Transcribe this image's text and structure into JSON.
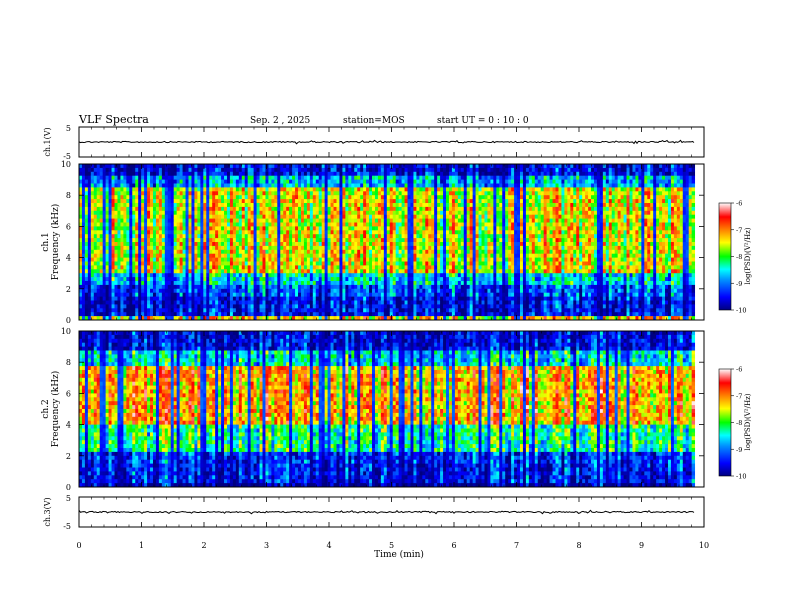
{
  "header": {
    "title": "VLF Spectra",
    "date": "Sep. 2 , 2025",
    "station": "station=MOS",
    "start_ut": "start UT =  0 : 10 : 0"
  },
  "colorbar": {
    "label": "log(PSD)(V²/Hz)",
    "ticks": [
      "-6",
      "-7",
      "-8",
      "-9",
      "-10"
    ],
    "stops": [
      "#000080",
      "#0000ff",
      "#0090ff",
      "#00ffff",
      "#00ff00",
      "#ffff00",
      "#ff8000",
      "#ff0000",
      "#ffffff"
    ]
  },
  "chart_data": [
    {
      "type": "line",
      "name": "ch1-waveform",
      "ylabel": "ch.1(V)",
      "ylim": [
        -5,
        5
      ],
      "yticks": [
        "5",
        "-5"
      ],
      "baseline": 0,
      "xlim": [
        0,
        10
      ]
    },
    {
      "type": "heatmap",
      "name": "ch1-spectrogram",
      "ylabel_channel": "ch.1",
      "ylabel": "Frequency (kHz)",
      "ylim": [
        0,
        10
      ],
      "yticks": [
        "0",
        "2",
        "4",
        "6",
        "8",
        "10"
      ],
      "xlim": [
        0,
        10
      ],
      "zlim": [
        -10,
        -6
      ],
      "data_end_min": 9.85,
      "bands_khz": [
        {
          "f0": 0.0,
          "f1": 0.3,
          "level": 0.65
        },
        {
          "f0": 0.3,
          "f1": 1.5,
          "level": 0.12
        },
        {
          "f0": 1.5,
          "f1": 2.2,
          "level": 0.2
        },
        {
          "f0": 2.2,
          "f1": 3.0,
          "level": 0.35
        },
        {
          "f0": 3.0,
          "f1": 8.5,
          "level": 0.62
        },
        {
          "f0": 8.5,
          "f1": 9.3,
          "level": 0.3
        },
        {
          "f0": 9.3,
          "f1": 10.0,
          "level": 0.1
        }
      ]
    },
    {
      "type": "heatmap",
      "name": "ch2-spectrogram",
      "ylabel_channel": "ch.2",
      "ylabel": "Frequency (kHz)",
      "ylim": [
        0,
        10
      ],
      "yticks": [
        "0",
        "2",
        "4",
        "6",
        "8",
        "10"
      ],
      "xlim": [
        0,
        10
      ],
      "zlim": [
        -10,
        -6
      ],
      "data_end_min": 9.85,
      "bands_khz": [
        {
          "f0": 0.0,
          "f1": 0.3,
          "level": 0.05
        },
        {
          "f0": 0.3,
          "f1": 1.5,
          "level": 0.15
        },
        {
          "f0": 1.5,
          "f1": 2.3,
          "level": 0.18
        },
        {
          "f0": 2.3,
          "f1": 4.0,
          "level": 0.45
        },
        {
          "f0": 4.0,
          "f1": 7.8,
          "level": 0.72
        },
        {
          "f0": 7.8,
          "f1": 8.8,
          "level": 0.38
        },
        {
          "f0": 8.8,
          "f1": 10.0,
          "level": 0.12
        }
      ]
    },
    {
      "type": "line",
      "name": "ch3-waveform",
      "ylabel": "ch.3(V)",
      "ylim": [
        -5,
        5
      ],
      "yticks": [
        "5",
        "-5"
      ],
      "baseline": 0,
      "xlim": [
        0,
        10
      ],
      "xlabel": "Time (min)",
      "xticks": [
        "0",
        "1",
        "2",
        "3",
        "4",
        "5",
        "6",
        "7",
        "8",
        "9",
        "10"
      ]
    }
  ]
}
